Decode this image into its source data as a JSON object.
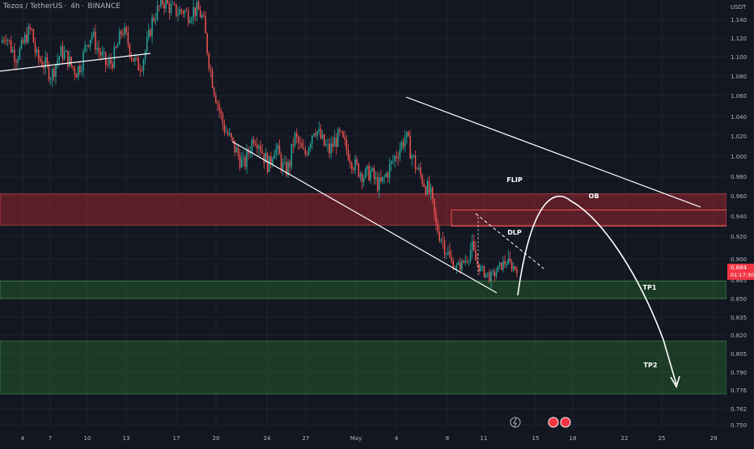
{
  "header": {
    "symbol": "Tezos / TetherUS",
    "interval": "4h",
    "exchange": "BINANCE"
  },
  "colors": {
    "background": "#131722",
    "up": "#26a69a",
    "down": "#ef5350",
    "grid": "#1f2330",
    "axis_text": "#b2b5be",
    "price_tag": "#f23645",
    "flip_zone": "rgba(178, 40, 51, 0.45)",
    "tp_zone": "rgba(46, 125, 50, 0.35)",
    "drawing": "#ffffff"
  },
  "chart_data": {
    "type": "candlestick",
    "quote_currency": "USDT",
    "y_ticks": [
      "1.140",
      "1.120",
      "1.100",
      "1.080",
      "1.060",
      "1.040",
      "1.020",
      "1.000",
      "0.980",
      "0.960",
      "0.940",
      "0.920",
      "0.900",
      "0.865",
      "0.850",
      "0.835",
      "0.820",
      "0.805",
      "0.790",
      "0.776",
      "0.762",
      "0.750"
    ],
    "x_ticks": [
      "4",
      "7",
      "10",
      "13",
      "17",
      "20",
      "24",
      "27",
      "May",
      "4",
      "8",
      "11",
      "15",
      "18",
      "22",
      "25",
      "29"
    ],
    "current_price": "0.884",
    "countdown": "01:17:30",
    "candle_path": [
      1.115,
      1.125,
      1.11,
      1.1,
      1.108,
      1.122,
      1.13,
      1.1,
      1.095,
      1.09,
      1.08,
      1.095,
      1.105,
      1.1,
      1.09,
      1.085,
      1.095,
      1.115,
      1.125,
      1.11,
      1.1,
      1.09,
      1.095,
      1.11,
      1.13,
      1.118,
      1.1,
      1.09,
      1.095,
      1.115,
      1.14,
      1.15,
      1.16,
      1.155,
      1.15,
      1.148,
      1.15,
      1.145,
      1.15,
      1.15,
      1.14,
      1.1,
      1.07,
      1.05,
      1.03,
      1.02,
      1.01,
      1.0,
      0.99,
      1.005,
      1.02,
      1.015,
      1.0,
      0.99,
      1.01,
      1.0,
      0.985,
      0.99,
      1.02,
      1.01,
      1.0,
      1.015,
      1.03,
      1.02,
      1.01,
      1.005,
      1.015,
      1.02,
      1.01,
      1.0,
      0.99,
      0.985,
      0.98,
      0.985,
      0.975,
      0.97,
      0.98,
      0.99,
      1.0,
      1.01,
      1.02,
      1.005,
      0.99,
      0.98,
      0.97,
      0.96,
      0.93,
      0.92,
      0.91,
      0.895,
      0.885,
      0.89,
      0.9,
      0.91,
      0.895,
      0.88,
      0.875,
      0.87,
      0.88,
      0.89,
      0.895,
      0.888,
      0.884
    ],
    "zones": [
      {
        "label": "FLIP",
        "top": 0.962,
        "bottom": 0.931
      },
      {
        "label": "OB",
        "top": 0.946,
        "bottom": 0.93
      },
      {
        "label": "TP1",
        "top": 0.864,
        "bottom": 0.85
      },
      {
        "label": "TP2",
        "top": 0.815,
        "bottom": 0.773
      }
    ],
    "annotations": [
      "FLIP",
      "OB",
      "DLP",
      "TP1",
      "TP2"
    ],
    "grid": true
  }
}
